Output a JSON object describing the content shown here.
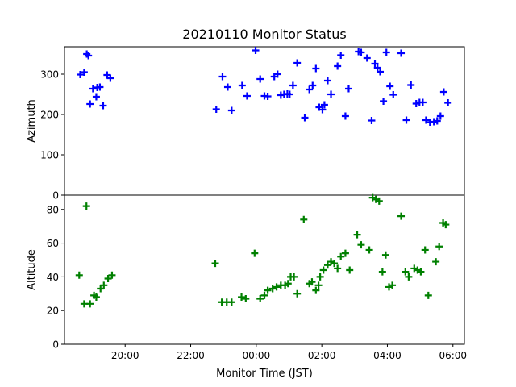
{
  "chart_data": {
    "type": "scatter",
    "title": "20210110 Monitor Status",
    "xlabel": "Monitor Time (JST)",
    "x_unit": "hours (JST, values past 24 are after midnight)",
    "xlim": [
      18.15,
      30.35
    ],
    "x_ticks": [
      {
        "value": 20,
        "label": "20:00"
      },
      {
        "value": 22,
        "label": "22:00"
      },
      {
        "value": 24,
        "label": "00:00"
      },
      {
        "value": 26,
        "label": "02:00"
      },
      {
        "value": 28,
        "label": "04:00"
      },
      {
        "value": 30,
        "label": "06:00"
      }
    ],
    "marker": "+",
    "panels": [
      {
        "ylabel": "Azimuth",
        "ylim": [
          0,
          368
        ],
        "y_ticks": [
          0,
          100,
          200,
          300
        ],
        "color": "#0000ff",
        "points": [
          [
            18.63,
            299
          ],
          [
            18.75,
            305
          ],
          [
            18.83,
            350
          ],
          [
            18.88,
            346
          ],
          [
            18.93,
            226
          ],
          [
            19.02,
            264
          ],
          [
            19.12,
            244
          ],
          [
            19.15,
            267
          ],
          [
            19.23,
            268
          ],
          [
            19.33,
            222
          ],
          [
            19.45,
            298
          ],
          [
            19.55,
            290
          ],
          [
            22.78,
            213
          ],
          [
            22.97,
            294
          ],
          [
            23.13,
            268
          ],
          [
            23.25,
            210
          ],
          [
            23.57,
            272
          ],
          [
            23.72,
            246
          ],
          [
            23.98,
            359
          ],
          [
            24.12,
            288
          ],
          [
            24.25,
            246
          ],
          [
            24.35,
            245
          ],
          [
            24.55,
            294
          ],
          [
            24.65,
            300
          ],
          [
            24.75,
            248
          ],
          [
            24.85,
            250
          ],
          [
            24.95,
            251
          ],
          [
            25.02,
            250
          ],
          [
            25.12,
            272
          ],
          [
            25.25,
            328
          ],
          [
            25.48,
            192
          ],
          [
            25.62,
            262
          ],
          [
            25.72,
            272
          ],
          [
            25.82,
            314
          ],
          [
            25.92,
            218
          ],
          [
            26.02,
            212
          ],
          [
            26.08,
            224
          ],
          [
            26.18,
            284
          ],
          [
            26.28,
            250
          ],
          [
            26.48,
            320
          ],
          [
            26.58,
            347
          ],
          [
            26.72,
            196
          ],
          [
            26.82,
            264
          ],
          [
            27.12,
            356
          ],
          [
            27.2,
            354
          ],
          [
            27.38,
            340
          ],
          [
            27.52,
            185
          ],
          [
            27.62,
            326
          ],
          [
            27.7,
            316
          ],
          [
            27.78,
            306
          ],
          [
            27.88,
            233
          ],
          [
            27.97,
            354
          ],
          [
            28.08,
            270
          ],
          [
            28.18,
            249
          ],
          [
            28.42,
            352
          ],
          [
            28.58,
            186
          ],
          [
            28.72,
            273
          ],
          [
            28.88,
            227
          ],
          [
            28.98,
            230
          ],
          [
            29.08,
            230
          ],
          [
            29.18,
            186
          ],
          [
            29.3,
            181
          ],
          [
            29.42,
            182
          ],
          [
            29.52,
            184
          ],
          [
            29.62,
            196
          ],
          [
            29.72,
            256
          ],
          [
            29.85,
            229
          ]
        ]
      },
      {
        "ylabel": "Altitude",
        "ylim": [
          0,
          88.5
        ],
        "y_ticks": [
          0,
          20,
          40,
          60,
          80
        ],
        "color": "#008000",
        "points": [
          [
            18.6,
            41
          ],
          [
            18.75,
            24
          ],
          [
            18.82,
            82
          ],
          [
            18.93,
            24
          ],
          [
            19.05,
            29
          ],
          [
            19.12,
            28
          ],
          [
            19.25,
            33
          ],
          [
            19.35,
            35
          ],
          [
            19.48,
            39
          ],
          [
            19.6,
            41
          ],
          [
            22.75,
            48
          ],
          [
            22.95,
            25
          ],
          [
            23.1,
            25
          ],
          [
            23.25,
            25
          ],
          [
            23.55,
            28
          ],
          [
            23.68,
            27
          ],
          [
            23.95,
            54
          ],
          [
            24.12,
            27
          ],
          [
            24.25,
            29
          ],
          [
            24.35,
            32
          ],
          [
            24.5,
            33
          ],
          [
            24.62,
            34
          ],
          [
            24.75,
            35
          ],
          [
            24.88,
            35
          ],
          [
            24.97,
            36
          ],
          [
            25.05,
            40
          ],
          [
            25.15,
            40
          ],
          [
            25.25,
            30
          ],
          [
            25.45,
            74
          ],
          [
            25.62,
            36
          ],
          [
            25.7,
            37
          ],
          [
            25.82,
            32
          ],
          [
            25.9,
            35
          ],
          [
            25.95,
            40
          ],
          [
            26.05,
            44
          ],
          [
            26.18,
            47
          ],
          [
            26.28,
            49
          ],
          [
            26.38,
            48
          ],
          [
            26.48,
            45
          ],
          [
            26.58,
            52
          ],
          [
            26.72,
            54
          ],
          [
            26.85,
            44
          ],
          [
            27.08,
            65
          ],
          [
            27.2,
            59
          ],
          [
            27.45,
            56
          ],
          [
            27.55,
            87
          ],
          [
            27.65,
            86
          ],
          [
            27.75,
            85
          ],
          [
            27.85,
            43
          ],
          [
            27.95,
            53
          ],
          [
            28.05,
            34
          ],
          [
            28.15,
            35
          ],
          [
            28.42,
            76
          ],
          [
            28.55,
            43
          ],
          [
            28.65,
            40
          ],
          [
            28.82,
            45
          ],
          [
            28.92,
            44
          ],
          [
            29.02,
            43
          ],
          [
            29.15,
            56
          ],
          [
            29.25,
            29
          ],
          [
            29.48,
            49
          ],
          [
            29.58,
            58
          ],
          [
            29.7,
            72
          ],
          [
            29.78,
            71
          ]
        ]
      }
    ]
  }
}
